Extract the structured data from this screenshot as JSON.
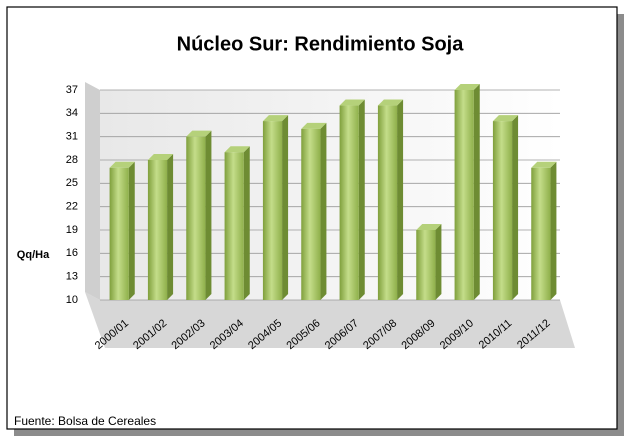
{
  "chart_data": {
    "type": "bar3d",
    "title": "Núcleo Sur: Rendimiento Soja",
    "y_label": "Qq/Ha",
    "source": "Fuente: Bolsa de Cereales",
    "categories": [
      "2000/01",
      "2001/02",
      "2002/03",
      "2003/04",
      "2004/05",
      "2005/06",
      "2006/07",
      "2007/08",
      "2008/09",
      "2009/10",
      "2010/11",
      "2011/12"
    ],
    "values": [
      27,
      28,
      31,
      29,
      33,
      32,
      35,
      35,
      19,
      37,
      33,
      27
    ],
    "color": "#9bbb59",
    "ylim": [
      10,
      37
    ],
    "yticks": [
      10,
      13,
      16,
      19,
      22,
      25,
      28,
      31,
      34,
      37
    ],
    "grid": true
  }
}
